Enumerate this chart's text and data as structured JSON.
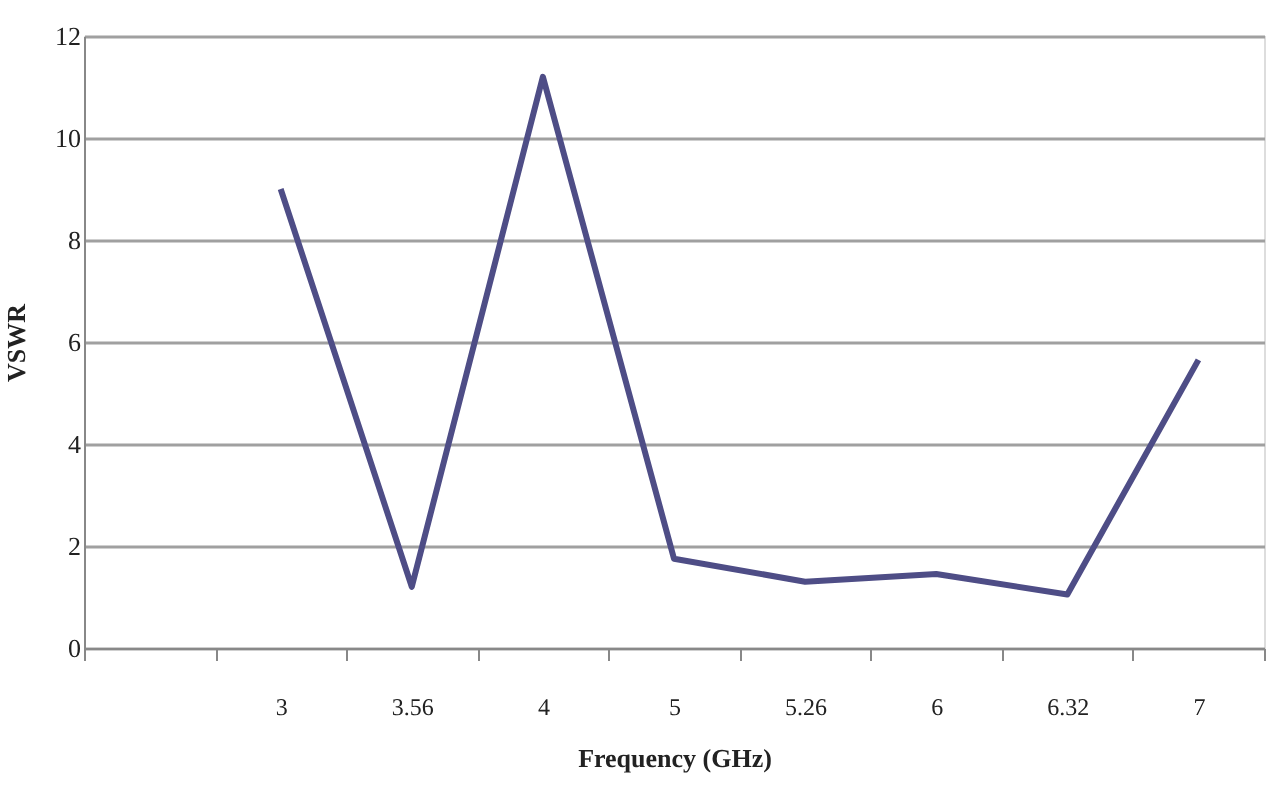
{
  "chart_data": {
    "type": "line",
    "xlabel": "Frequency (GHz)",
    "ylabel": "VSWR",
    "categories": [
      null,
      "3",
      "3.56",
      "4",
      "5",
      "5.26",
      "6",
      "6.32",
      "7"
    ],
    "series": [
      {
        "color": "#4e4d86",
        "values": [
          null,
          9.0,
          1.2,
          11.2,
          1.75,
          1.3,
          1.45,
          1.05,
          5.65
        ]
      }
    ],
    "ylim": [
      0,
      12
    ],
    "yticks": [
      0,
      2,
      4,
      6,
      8,
      10,
      12
    ],
    "grid": "y",
    "marker": "none",
    "line_style": "solid",
    "legend": false
  }
}
